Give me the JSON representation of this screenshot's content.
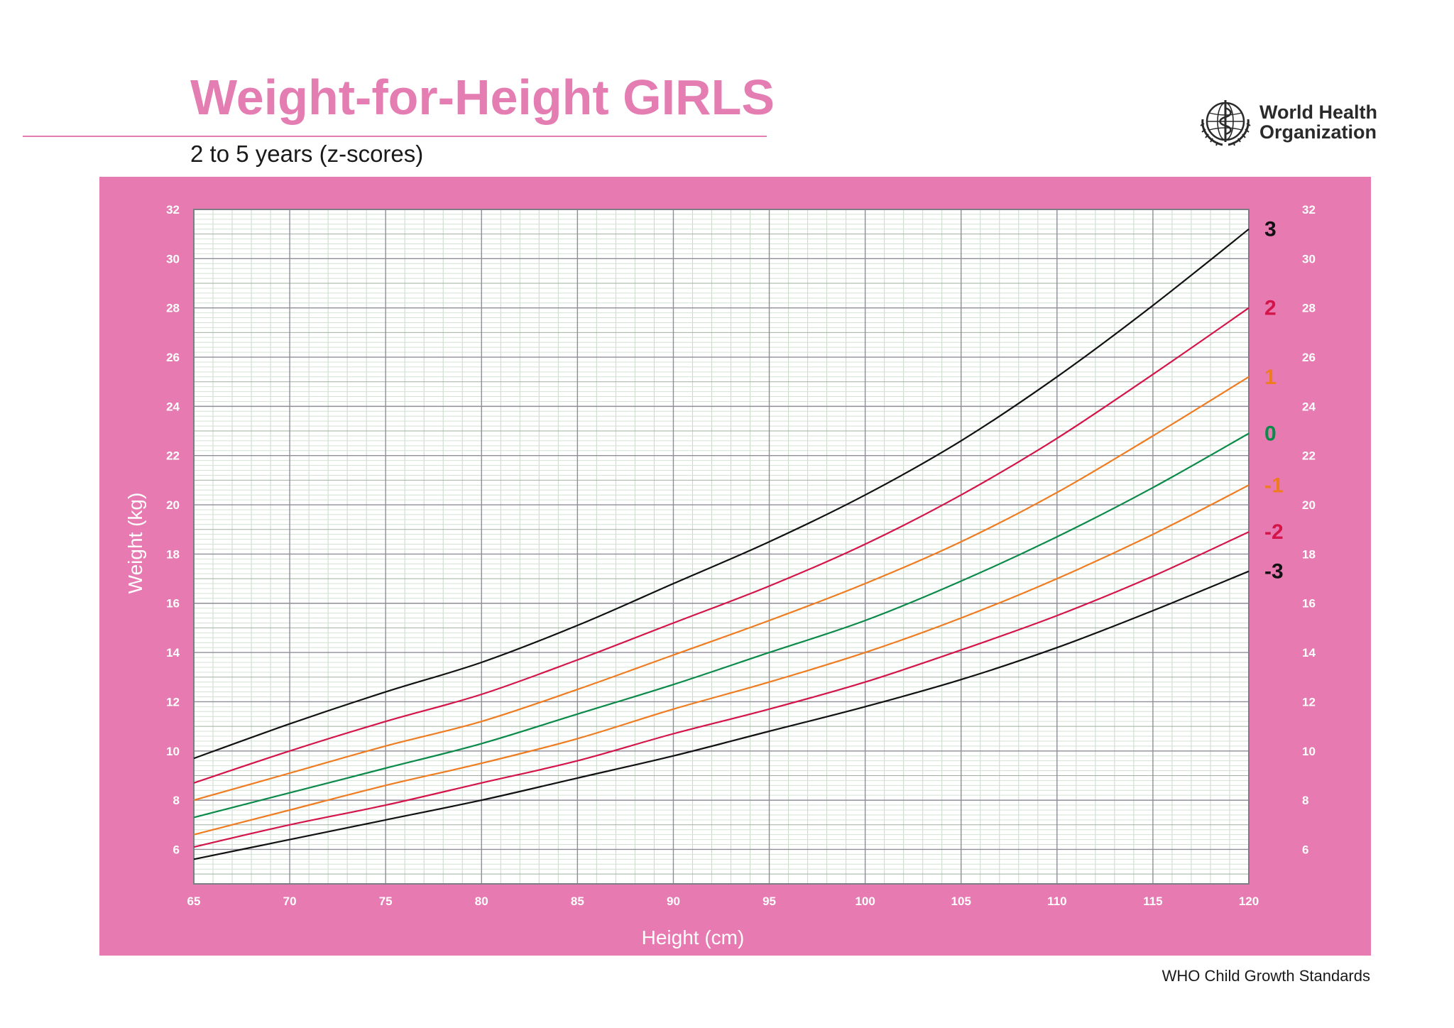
{
  "header": {
    "title": "Weight-for-Height GIRLS",
    "subtitle": "2 to 5 years (z-scores)",
    "logo_line1": "World Health",
    "logo_line2": "Organization"
  },
  "footer": {
    "text": "WHO Child Growth Standards"
  },
  "colors": {
    "panel": "#e67ab1",
    "title": "#e47db2",
    "z3": "#111111",
    "z2": "#d4154a",
    "z1": "#ef7c21",
    "z0": "#0b8a4a"
  },
  "chart_data": {
    "type": "line",
    "title": "",
    "xlabel": "Height (cm)",
    "ylabel": "Weight (kg)",
    "xlim": [
      65,
      120
    ],
    "ylim": [
      4.6,
      32
    ],
    "x_ticks": [
      "65",
      "70",
      "75",
      "80",
      "85",
      "90",
      "95",
      "100",
      "105",
      "110",
      "115",
      "120"
    ],
    "y_ticks": [
      "6",
      "8",
      "10",
      "12",
      "14",
      "16",
      "18",
      "20",
      "22",
      "24",
      "26",
      "28",
      "30",
      "32"
    ],
    "grid": true,
    "x": [
      65,
      70,
      75,
      80,
      85,
      90,
      95,
      100,
      105,
      110,
      115,
      120
    ],
    "series": [
      {
        "name": "3",
        "color": "#111111",
        "values": [
          9.7,
          11.1,
          12.4,
          13.6,
          15.1,
          16.8,
          18.5,
          20.4,
          22.6,
          25.2,
          28.1,
          31.2
        ]
      },
      {
        "name": "2",
        "color": "#d4154a",
        "values": [
          8.7,
          10.0,
          11.2,
          12.3,
          13.7,
          15.2,
          16.7,
          18.4,
          20.4,
          22.7,
          25.3,
          28.0
        ]
      },
      {
        "name": "1",
        "color": "#ef7c21",
        "values": [
          8.0,
          9.1,
          10.2,
          11.2,
          12.5,
          13.9,
          15.3,
          16.8,
          18.5,
          20.5,
          22.8,
          25.2
        ]
      },
      {
        "name": "0",
        "color": "#0b8a4a",
        "values": [
          7.3,
          8.3,
          9.3,
          10.3,
          11.5,
          12.7,
          14.0,
          15.3,
          16.9,
          18.7,
          20.7,
          22.9
        ]
      },
      {
        "name": "-1",
        "color": "#ef7c21",
        "values": [
          6.6,
          7.6,
          8.6,
          9.5,
          10.5,
          11.7,
          12.8,
          14.0,
          15.4,
          17.0,
          18.8,
          20.8
        ]
      },
      {
        "name": "-2",
        "color": "#d4154a",
        "values": [
          6.1,
          7.0,
          7.8,
          8.7,
          9.6,
          10.7,
          11.7,
          12.8,
          14.1,
          15.5,
          17.1,
          18.9
        ]
      },
      {
        "name": "-3",
        "color": "#111111",
        "values": [
          5.6,
          6.4,
          7.2,
          8.0,
          8.9,
          9.8,
          10.8,
          11.8,
          12.9,
          14.2,
          15.7,
          17.3
        ]
      }
    ]
  }
}
